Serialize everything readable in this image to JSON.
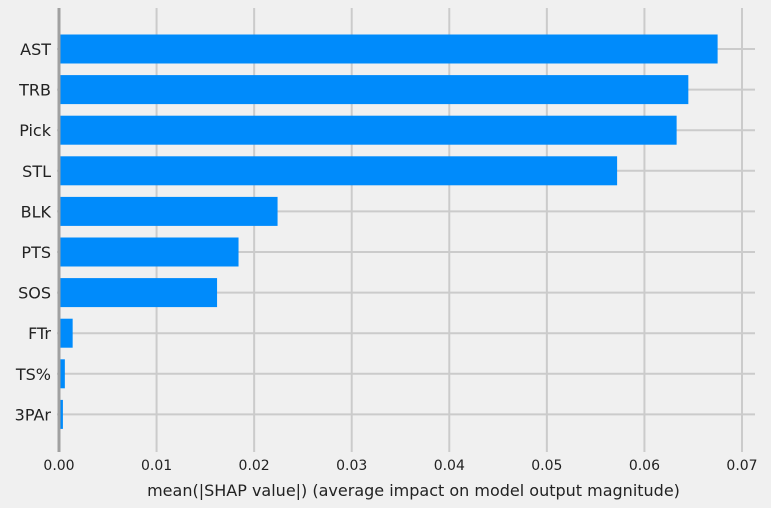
{
  "chart_data": {
    "type": "bar",
    "orientation": "horizontal",
    "categories": [
      "AST",
      "TRB",
      "Pick",
      "STL",
      "BLK",
      "PTS",
      "SOS",
      "FTr",
      "TS%",
      "3PAr"
    ],
    "values": [
      0.0675,
      0.0645,
      0.0633,
      0.0572,
      0.0224,
      0.0184,
      0.0162,
      0.0014,
      0.0006,
      0.0004
    ],
    "title": "",
    "xlabel": "mean(|SHAP value|) (average impact on model output magnitude)",
    "ylabel": "",
    "xlim": [
      0,
      0.07
    ],
    "xticks": [
      0,
      0.01,
      0.02,
      0.03,
      0.04,
      0.05,
      0.06,
      0.07
    ],
    "xtick_labels": [
      "0.00",
      "0.01",
      "0.02",
      "0.03",
      "0.04",
      "0.05",
      "0.06",
      "0.07"
    ],
    "grid": true,
    "bar_color": "#008bfb",
    "background_color": "#f0f0f0",
    "grid_color": "#cbcbcb"
  }
}
